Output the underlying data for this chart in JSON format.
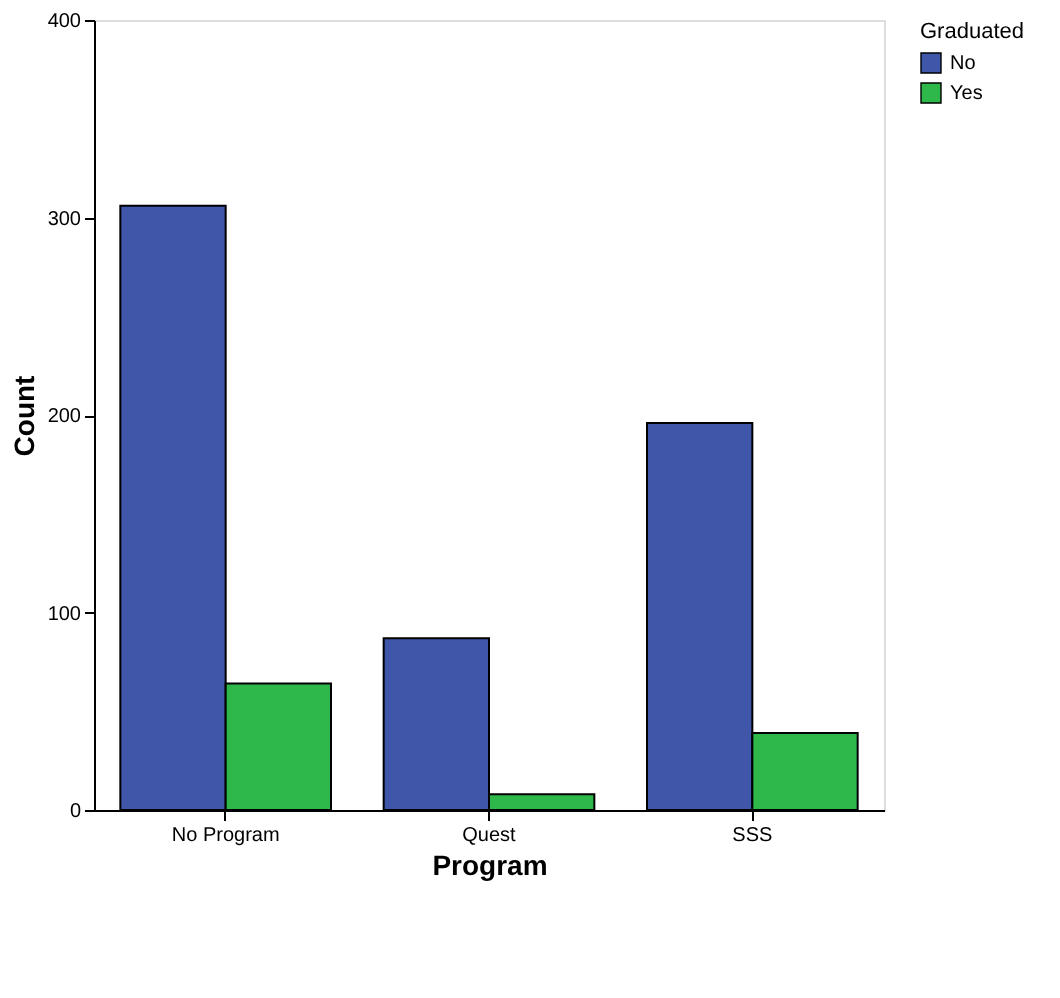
{
  "chart_data": {
    "type": "bar",
    "xlabel": "Program",
    "ylabel": "Count",
    "legend_title": "Graduated",
    "categories": [
      "No Program",
      "Quest",
      "SSS"
    ],
    "series": [
      {
        "name": "No",
        "color": "#3f56a9",
        "values": [
          306,
          87,
          196
        ]
      },
      {
        "name": "Yes",
        "color": "#2eb84a",
        "values": [
          64,
          8,
          39
        ]
      }
    ],
    "ylim": [
      0,
      400
    ],
    "yticks": [
      0,
      100,
      200,
      300,
      400
    ],
    "grid": false,
    "legend": "top right"
  }
}
